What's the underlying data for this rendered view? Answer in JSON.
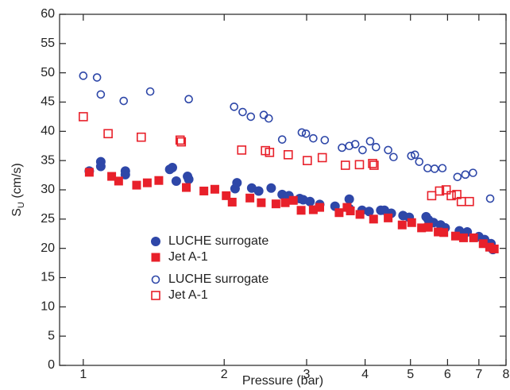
{
  "chart_data": {
    "type": "scatter",
    "x_label": "Pressure (bar)",
    "y_label": [
      "S",
      "U",
      " (cm/s)"
    ],
    "xscale": "log",
    "xlim": [
      0.89,
      8
    ],
    "ylim": [
      0,
      60
    ],
    "xticks": [
      1,
      2,
      3,
      4,
      5,
      6,
      7,
      8
    ],
    "yticks": [
      0,
      5,
      10,
      15,
      20,
      25,
      30,
      35,
      40,
      45,
      50,
      55,
      60
    ],
    "legend": true,
    "series": [
      {
        "name": "LUCHE surrogate",
        "color": "#2e47a8",
        "marker": "circle",
        "filled": true,
        "x": [
          1.03,
          1.09,
          1.09,
          1.23,
          1.23,
          1.53,
          1.55,
          1.58,
          1.67,
          1.68,
          2.11,
          2.13,
          2.29,
          2.37,
          2.52,
          2.66,
          2.75,
          2.9,
          2.95,
          3.05,
          3.2,
          3.45,
          3.7,
          3.7,
          3.94,
          4.08,
          4.32,
          4.4,
          4.55,
          4.82,
          4.97,
          5.4,
          5.46,
          5.6,
          5.8,
          5.93,
          6.36,
          6.61,
          7.0,
          7.2,
          7.43,
          7.5
        ],
        "values": [
          33.2,
          34.8,
          34.0,
          33.2,
          32.6,
          33.5,
          33.8,
          31.5,
          32.3,
          31.8,
          30.2,
          31.2,
          30.3,
          29.8,
          30.3,
          29.2,
          29.0,
          28.5,
          28.3,
          28.0,
          27.5,
          27.2,
          28.4,
          26.8,
          26.5,
          26.3,
          26.5,
          26.5,
          26.0,
          25.6,
          25.3,
          25.4,
          24.9,
          24.4,
          24.0,
          23.5,
          23.0,
          22.8,
          22.0,
          21.5,
          20.8,
          19.8
        ]
      },
      {
        "name": "Jet A-1",
        "color": "#e8202a",
        "marker": "square",
        "filled": true,
        "x": [
          1.03,
          1.15,
          1.19,
          1.3,
          1.37,
          1.45,
          1.66,
          1.81,
          1.91,
          2.02,
          2.08,
          2.27,
          2.4,
          2.58,
          2.7,
          2.81,
          2.92,
          3.1,
          3.2,
          3.52,
          3.66,
          3.72,
          3.9,
          4.17,
          4.48,
          4.8,
          5.03,
          5.28,
          5.46,
          5.73,
          5.89,
          6.24,
          6.49,
          6.82,
          7.15,
          7.38,
          7.55
        ],
        "values": [
          33.0,
          32.3,
          31.5,
          30.8,
          31.2,
          31.6,
          30.4,
          29.8,
          30.1,
          29.0,
          27.9,
          28.6,
          27.8,
          27.6,
          27.8,
          28.2,
          26.5,
          26.6,
          27.0,
          26.1,
          27.0,
          26.4,
          25.8,
          25.0,
          25.2,
          24.0,
          24.4,
          23.5,
          23.6,
          22.8,
          22.7,
          22.1,
          21.8,
          21.8,
          20.8,
          20.2,
          19.9
        ]
      },
      {
        "name": "LUCHE surrogate",
        "color": "#2e47a8",
        "marker": "circle",
        "filled": false,
        "x": [
          1.0,
          1.07,
          1.09,
          1.22,
          1.39,
          1.68,
          2.1,
          2.19,
          2.28,
          2.43,
          2.49,
          2.66,
          2.93,
          2.99,
          3.1,
          3.28,
          3.57,
          3.7,
          3.81,
          3.95,
          4.1,
          4.22,
          4.48,
          4.6,
          5.02,
          5.11,
          5.22,
          5.44,
          5.63,
          5.85,
          6.3,
          6.55,
          6.8,
          7.4
        ],
        "values": [
          49.5,
          49.2,
          46.3,
          45.2,
          46.8,
          45.5,
          44.2,
          43.3,
          42.5,
          42.8,
          42.2,
          38.6,
          39.8,
          39.6,
          38.8,
          38.5,
          37.2,
          37.5,
          37.8,
          36.8,
          38.3,
          37.3,
          36.8,
          35.6,
          35.8,
          36.0,
          34.8,
          33.7,
          33.6,
          33.7,
          32.2,
          32.6,
          32.9,
          28.5
        ]
      },
      {
        "name": "Jet A-1",
        "color": "#e8202a",
        "marker": "square",
        "filled": false,
        "x": [
          1.0,
          1.13,
          1.33,
          1.61,
          1.62,
          2.18,
          2.45,
          2.5,
          2.74,
          3.01,
          3.24,
          3.63,
          3.89,
          4.15,
          4.18,
          5.55,
          5.77,
          5.96,
          6.11,
          6.28,
          6.42,
          6.68
        ],
        "values": [
          42.5,
          39.6,
          39.0,
          38.5,
          38.2,
          36.8,
          36.7,
          36.4,
          36.0,
          35.0,
          35.5,
          34.2,
          34.3,
          34.5,
          34.2,
          29.0,
          29.8,
          30.0,
          29.0,
          29.2,
          28.0,
          28.0
        ]
      }
    ]
  }
}
